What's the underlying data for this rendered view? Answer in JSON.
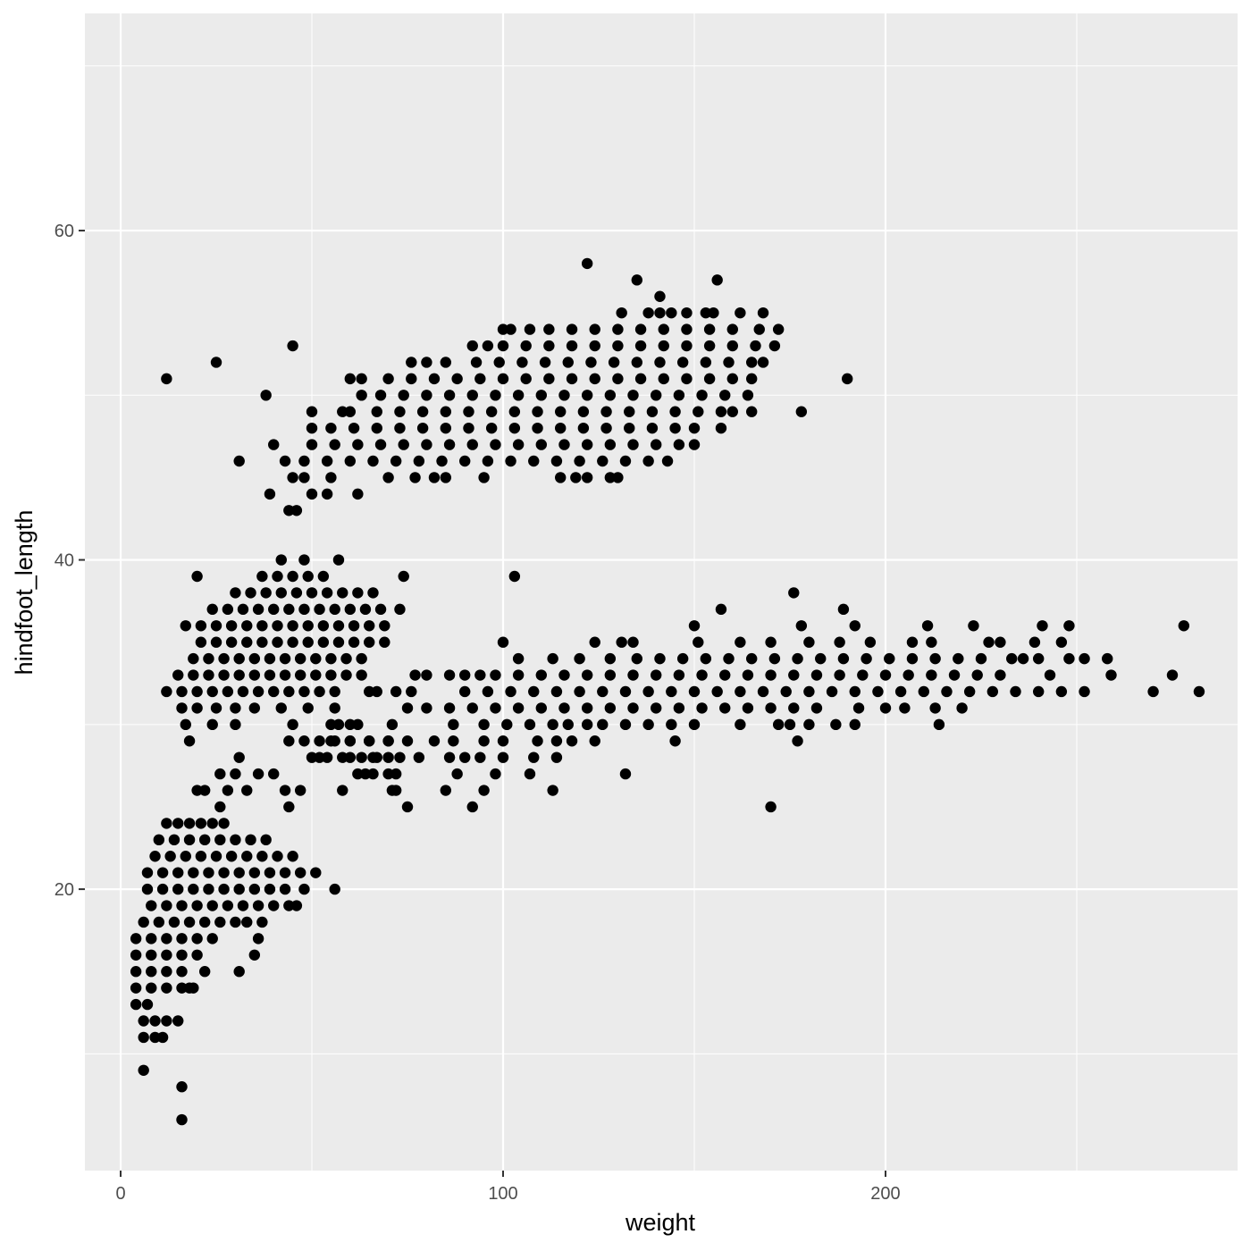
{
  "chart_data": {
    "type": "scatter",
    "x_label": "weight",
    "y_label": "hindfoot_length",
    "xlim": [
      -9.35,
      292.06
    ],
    "ylim": [
      2.91,
      73.19
    ],
    "xticks": [
      0,
      100,
      200
    ],
    "yticks": [
      20,
      40,
      60
    ],
    "x_minor_grid": [
      50,
      150,
      250
    ],
    "y_minor_grid": [
      10,
      30,
      50,
      70
    ],
    "grid": true,
    "color": "#000000",
    "panel_color": "#ebebeb",
    "x": [
      12,
      25,
      45,
      38,
      31,
      39,
      44,
      46,
      122,
      135,
      156,
      141,
      190,
      178,
      157,
      103,
      74,
      42,
      48,
      57,
      30,
      176,
      157,
      189,
      278,
      275,
      282,
      270,
      132,
      62,
      170,
      92,
      75,
      44,
      20,
      6,
      16,
      16,
      56,
      51,
      46,
      31,
      22,
      18,
      35,
      36,
      37,
      12,
      15,
      18,
      21,
      24,
      27,
      10,
      14,
      18,
      22,
      26,
      30,
      34,
      38,
      9,
      13,
      17,
      21,
      25,
      29,
      33,
      37,
      41,
      45,
      7,
      11,
      15,
      19,
      23,
      27,
      31,
      35,
      39,
      43,
      47,
      7,
      11,
      15,
      19,
      23,
      27,
      31,
      35,
      39,
      43,
      48,
      8,
      12,
      16,
      20,
      24,
      28,
      32,
      36,
      40,
      44,
      6,
      10,
      14,
      18,
      22,
      26,
      30,
      33,
      4,
      8,
      12,
      16,
      20,
      24,
      4,
      8,
      12,
      16,
      20,
      4,
      8,
      12,
      16,
      4,
      8,
      12,
      16,
      19,
      4,
      7,
      6,
      9,
      12,
      15,
      6,
      9,
      11,
      20,
      22,
      26,
      28,
      30,
      33,
      36,
      40,
      43,
      47,
      31,
      26,
      37,
      41,
      45,
      49,
      53,
      34,
      38,
      42,
      46,
      50,
      54,
      58,
      62,
      66,
      24,
      28,
      32,
      36,
      40,
      44,
      48,
      52,
      56,
      60,
      64,
      68,
      73,
      17,
      21,
      25,
      29,
      33,
      37,
      41,
      45,
      49,
      53,
      57,
      61,
      65,
      69,
      21,
      25,
      29,
      33,
      37,
      41,
      45,
      49,
      53,
      57,
      61,
      65,
      69,
      19,
      23,
      27,
      31,
      35,
      39,
      43,
      47,
      51,
      55,
      59,
      63,
      15,
      19,
      23,
      27,
      31,
      35,
      39,
      43,
      47,
      51,
      55,
      59,
      63,
      12,
      16,
      20,
      24,
      28,
      32,
      36,
      40,
      44,
      48,
      52,
      56,
      16,
      20,
      25,
      30,
      35,
      42,
      49,
      17,
      24,
      30,
      45,
      55,
      60,
      18,
      44,
      48,
      55,
      60,
      65,
      70,
      50,
      52,
      54,
      58,
      63,
      66,
      70,
      131,
      138,
      141,
      144,
      148,
      153,
      155,
      162,
      168,
      100,
      102,
      107,
      112,
      118,
      124,
      130,
      136,
      142,
      148,
      154,
      160,
      167,
      172,
      92,
      96,
      100,
      106,
      112,
      118,
      124,
      130,
      136,
      142,
      148,
      154,
      160,
      166,
      171,
      76,
      80,
      85,
      93,
      99,
      105,
      111,
      117,
      123,
      129,
      135,
      141,
      147,
      153,
      159,
      165,
      168,
      60,
      63,
      70,
      76,
      82,
      88,
      94,
      100,
      106,
      112,
      118,
      124,
      130,
      136,
      142,
      148,
      154,
      160,
      165,
      63,
      68,
      74,
      80,
      86,
      92,
      98,
      104,
      110,
      116,
      122,
      128,
      134,
      140,
      146,
      152,
      158,
      164,
      50,
      58,
      60,
      67,
      73,
      79,
      85,
      91,
      97,
      103,
      109,
      115,
      121,
      127,
      133,
      139,
      145,
      151,
      157,
      160,
      165,
      50,
      55,
      61,
      67,
      73,
      79,
      85,
      91,
      97,
      103,
      109,
      115,
      121,
      127,
      133,
      139,
      145,
      150,
      40,
      50,
      56,
      62,
      68,
      74,
      80,
      86,
      92,
      98,
      104,
      110,
      116,
      122,
      128,
      134,
      140,
      146,
      150,
      43,
      48,
      54,
      60,
      66,
      72,
      78,
      84,
      90,
      96,
      102,
      108,
      114,
      120,
      126,
      132,
      138,
      143,
      45,
      48,
      55,
      70,
      77,
      82,
      85,
      95,
      115,
      119,
      122,
      128,
      130,
      50,
      54,
      62,
      150,
      178,
      192,
      211,
      223,
      241,
      248,
      100,
      124,
      131,
      134,
      151,
      162,
      170,
      180,
      188,
      196,
      207,
      212,
      227,
      230,
      239,
      246,
      104,
      113,
      120,
      128,
      135,
      141,
      147,
      153,
      159,
      165,
      171,
      177,
      183,
      189,
      195,
      201,
      207,
      213,
      219,
      225,
      233,
      236,
      240,
      248,
      252,
      258,
      77,
      80,
      86,
      90,
      94,
      98,
      104,
      110,
      116,
      122,
      128,
      134,
      140,
      146,
      152,
      158,
      164,
      170,
      176,
      182,
      188,
      194,
      200,
      206,
      212,
      218,
      224,
      230,
      243,
      259,
      65,
      67,
      72,
      76,
      90,
      96,
      102,
      108,
      114,
      120,
      126,
      132,
      138,
      144,
      150,
      156,
      162,
      168,
      174,
      180,
      186,
      192,
      198,
      204,
      210,
      216,
      222,
      228,
      234,
      240,
      246,
      252,
      56,
      75,
      80,
      86,
      92,
      98,
      104,
      110,
      116,
      122,
      128,
      134,
      140,
      146,
      152,
      158,
      164,
      170,
      176,
      182,
      193,
      200,
      205,
      213,
      220,
      57,
      62,
      71,
      87,
      95,
      101,
      107,
      113,
      117,
      122,
      126,
      132,
      138,
      144,
      150,
      162,
      172,
      175,
      180,
      187,
      192,
      214,
      52,
      56,
      60,
      65,
      70,
      75,
      82,
      87,
      95,
      100,
      109,
      114,
      118,
      124,
      145,
      177,
      60,
      67,
      73,
      78,
      86,
      90,
      94,
      100,
      108,
      114,
      64,
      66,
      70,
      72,
      88,
      98,
      107,
      58,
      71,
      72,
      85,
      95,
      113
    ],
    "values": [
      51,
      52,
      53,
      50,
      46,
      44,
      43,
      43,
      58,
      57,
      57,
      56,
      51,
      49,
      48,
      39,
      39,
      40,
      40,
      40,
      38,
      38,
      37,
      37,
      36,
      33,
      32,
      32,
      27,
      27,
      25,
      25,
      25,
      25,
      39,
      9,
      8,
      6,
      20,
      21,
      19,
      15,
      15,
      14,
      16,
      17,
      18,
      24,
      24,
      24,
      24,
      24,
      24,
      23,
      23,
      23,
      23,
      23,
      23,
      23,
      23,
      22,
      22,
      22,
      22,
      22,
      22,
      22,
      22,
      22,
      22,
      21,
      21,
      21,
      21,
      21,
      21,
      21,
      21,
      21,
      21,
      21,
      20,
      20,
      20,
      20,
      20,
      20,
      20,
      20,
      20,
      20,
      20,
      19,
      19,
      19,
      19,
      19,
      19,
      19,
      19,
      19,
      19,
      18,
      18,
      18,
      18,
      18,
      18,
      18,
      18,
      17,
      17,
      17,
      17,
      17,
      17,
      16,
      16,
      16,
      16,
      16,
      15,
      15,
      15,
      15,
      14,
      14,
      14,
      14,
      14,
      13,
      13,
      12,
      12,
      12,
      12,
      11,
      11,
      11,
      26,
      26,
      25,
      26,
      27,
      26,
      27,
      27,
      26,
      26,
      28,
      27,
      39,
      39,
      39,
      39,
      39,
      38,
      38,
      38,
      38,
      38,
      38,
      38,
      38,
      38,
      37,
      37,
      37,
      37,
      37,
      37,
      37,
      37,
      37,
      37,
      37,
      37,
      37,
      36,
      36,
      36,
      36,
      36,
      36,
      36,
      36,
      36,
      36,
      36,
      36,
      36,
      36,
      35,
      35,
      35,
      35,
      35,
      35,
      35,
      35,
      35,
      35,
      35,
      35,
      35,
      34,
      34,
      34,
      34,
      34,
      34,
      34,
      34,
      34,
      34,
      34,
      34,
      33,
      33,
      33,
      33,
      33,
      33,
      33,
      33,
      33,
      33,
      33,
      33,
      33,
      32,
      32,
      32,
      32,
      32,
      32,
      32,
      32,
      32,
      32,
      32,
      32,
      31,
      31,
      31,
      31,
      31,
      31,
      31,
      30,
      30,
      30,
      30,
      30,
      30,
      29,
      29,
      29,
      29,
      29,
      29,
      29,
      28,
      28,
      28,
      28,
      28,
      28,
      28,
      55,
      55,
      55,
      55,
      55,
      55,
      55,
      55,
      55,
      54,
      54,
      54,
      54,
      54,
      54,
      54,
      54,
      54,
      54,
      54,
      54,
      54,
      54,
      53,
      53,
      53,
      53,
      53,
      53,
      53,
      53,
      53,
      53,
      53,
      53,
      53,
      53,
      53,
      52,
      52,
      52,
      52,
      52,
      52,
      52,
      52,
      52,
      52,
      52,
      52,
      52,
      52,
      52,
      52,
      52,
      51,
      51,
      51,
      51,
      51,
      51,
      51,
      51,
      51,
      51,
      51,
      51,
      51,
      51,
      51,
      51,
      51,
      51,
      51,
      50,
      50,
      50,
      50,
      50,
      50,
      50,
      50,
      50,
      50,
      50,
      50,
      50,
      50,
      50,
      50,
      50,
      50,
      49,
      49,
      49,
      49,
      49,
      49,
      49,
      49,
      49,
      49,
      49,
      49,
      49,
      49,
      49,
      49,
      49,
      49,
      49,
      49,
      49,
      48,
      48,
      48,
      48,
      48,
      48,
      48,
      48,
      48,
      48,
      48,
      48,
      48,
      48,
      48,
      48,
      48,
      48,
      47,
      47,
      47,
      47,
      47,
      47,
      47,
      47,
      47,
      47,
      47,
      47,
      47,
      47,
      47,
      47,
      47,
      47,
      47,
      46,
      46,
      46,
      46,
      46,
      46,
      46,
      46,
      46,
      46,
      46,
      46,
      46,
      46,
      46,
      46,
      46,
      46,
      45,
      45,
      45,
      45,
      45,
      45,
      45,
      45,
      45,
      45,
      45,
      45,
      45,
      44,
      44,
      44,
      36,
      36,
      36,
      36,
      36,
      36,
      36,
      35,
      35,
      35,
      35,
      35,
      35,
      35,
      35,
      35,
      35,
      35,
      35,
      35,
      35,
      35,
      35,
      34,
      34,
      34,
      34,
      34,
      34,
      34,
      34,
      34,
      34,
      34,
      34,
      34,
      34,
      34,
      34,
      34,
      34,
      34,
      34,
      34,
      34,
      34,
      34,
      34,
      34,
      33,
      33,
      33,
      33,
      33,
      33,
      33,
      33,
      33,
      33,
      33,
      33,
      33,
      33,
      33,
      33,
      33,
      33,
      33,
      33,
      33,
      33,
      33,
      33,
      33,
      33,
      33,
      33,
      33,
      33,
      32,
      32,
      32,
      32,
      32,
      32,
      32,
      32,
      32,
      32,
      32,
      32,
      32,
      32,
      32,
      32,
      32,
      32,
      32,
      32,
      32,
      32,
      32,
      32,
      32,
      32,
      32,
      32,
      32,
      32,
      32,
      32,
      31,
      31,
      31,
      31,
      31,
      31,
      31,
      31,
      31,
      31,
      31,
      31,
      31,
      31,
      31,
      31,
      31,
      31,
      31,
      31,
      31,
      31,
      31,
      31,
      31,
      30,
      30,
      30,
      30,
      30,
      30,
      30,
      30,
      30,
      30,
      30,
      30,
      30,
      30,
      30,
      30,
      30,
      30,
      30,
      30,
      30,
      30,
      29,
      29,
      29,
      29,
      29,
      29,
      29,
      29,
      29,
      29,
      29,
      29,
      29,
      29,
      29,
      29,
      28,
      28,
      28,
      28,
      28,
      28,
      28,
      28,
      28,
      28,
      27,
      27,
      27,
      27,
      27,
      27,
      27,
      26,
      26,
      26,
      26,
      26,
      26
    ]
  }
}
